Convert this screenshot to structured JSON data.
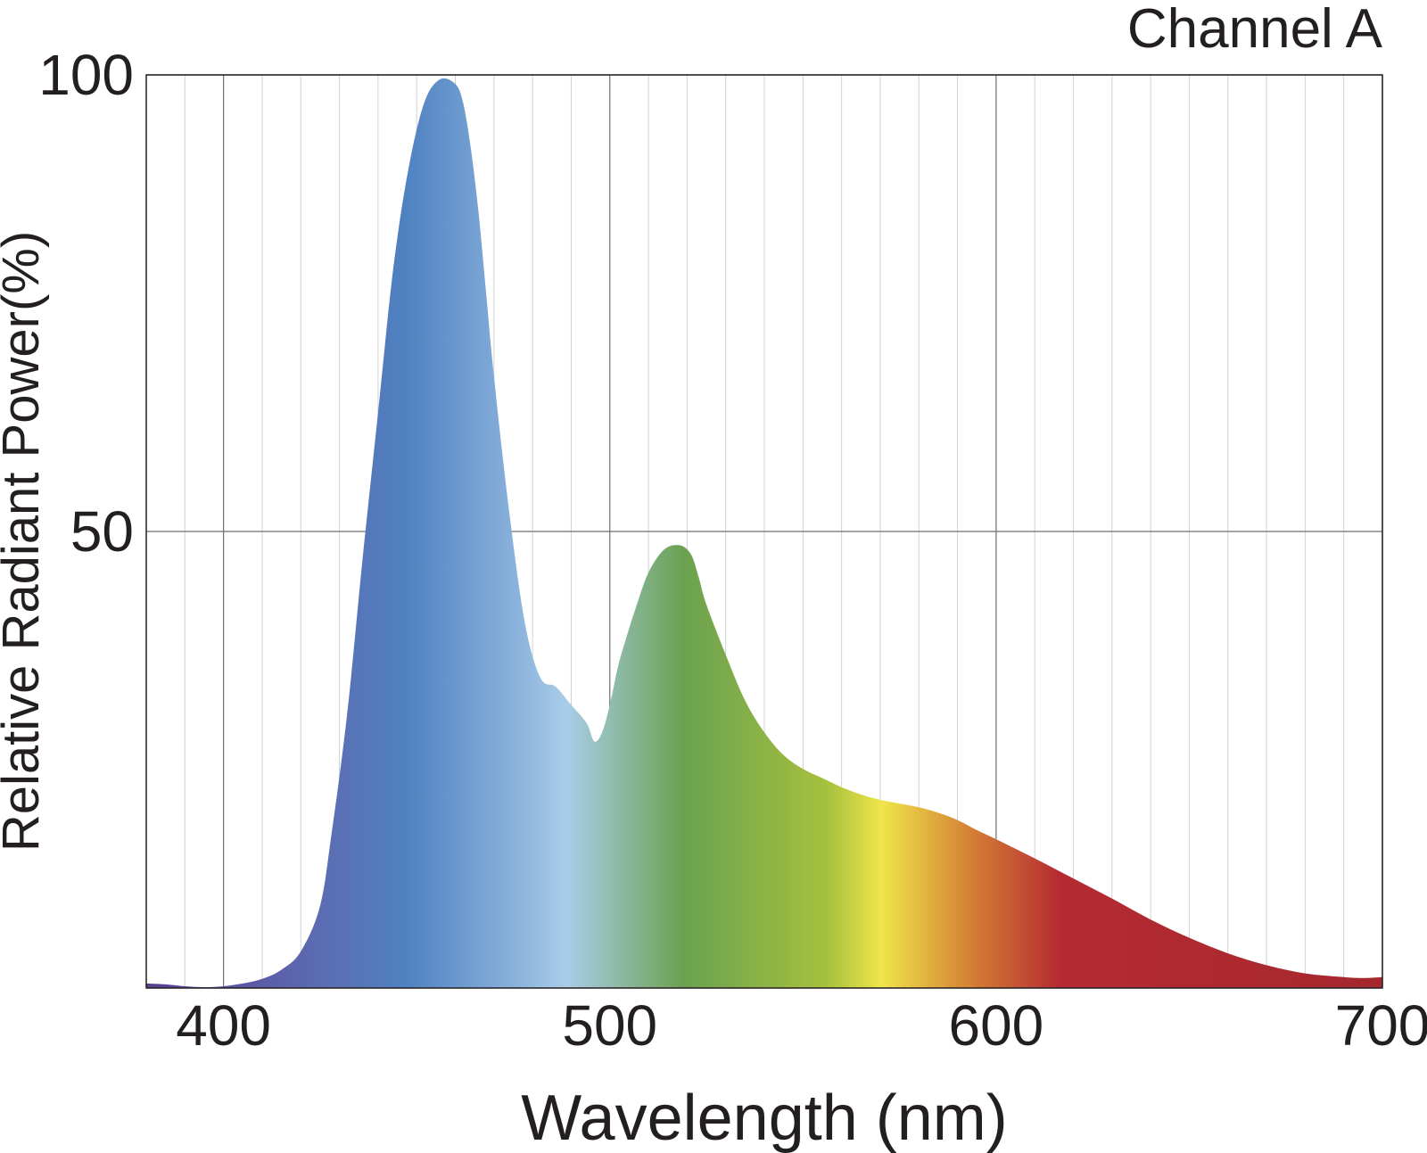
{
  "chart_data": {
    "type": "area",
    "title": "Channel A",
    "xlabel": "Wavelength (nm)",
    "ylabel": "Relative Radiant Power(%)",
    "xlim": [
      380,
      700
    ],
    "ylim": [
      0,
      100
    ],
    "x_ticks": [
      400,
      500,
      600,
      700
    ],
    "y_ticks": [
      50,
      100
    ],
    "x_minor_step": 10,
    "grid": true,
    "fill": "visible spectrum gradient",
    "series": [
      {
        "x": [
          380,
          385,
          390,
          395,
          400,
          405,
          410,
          415,
          420,
          425,
          428,
          432,
          436,
          440,
          444,
          448,
          452,
          456,
          460,
          462,
          464,
          466,
          468,
          470,
          474,
          478,
          482,
          486,
          490,
          494,
          496,
          498,
          500,
          502,
          504,
          507,
          510,
          514,
          518,
          521,
          523,
          525,
          530,
          535,
          540,
          545,
          550,
          555,
          560,
          565,
          570,
          575,
          580,
          585,
          590,
          595,
          600,
          610,
          620,
          630,
          640,
          650,
          660,
          670,
          680,
          690,
          695,
          700
        ],
        "y": [
          0.5,
          0.4,
          0.2,
          0.1,
          0.2,
          0.5,
          1.0,
          2.0,
          4.0,
          9.0,
          17.0,
          30.0,
          47.0,
          63.0,
          79.0,
          90.0,
          97.0,
          99.5,
          99.0,
          97.0,
          92.0,
          85.0,
          76.0,
          67.0,
          52.0,
          40.0,
          34.0,
          33.0,
          31.0,
          29.0,
          27.0,
          28.0,
          31.0,
          35.0,
          38.0,
          42.0,
          45.5,
          48.0,
          48.5,
          47.5,
          45.0,
          42.0,
          36.5,
          31.5,
          28.0,
          25.5,
          24.0,
          23.0,
          22.0,
          21.2,
          20.6,
          20.2,
          19.8,
          19.2,
          18.4,
          17.3,
          16.3,
          14.2,
          12.0,
          9.8,
          7.5,
          5.5,
          3.8,
          2.5,
          1.6,
          1.2,
          1.1,
          1.2
        ]
      }
    ]
  },
  "colors": {
    "axis": "#231f20",
    "major_grid": "#6d6e71",
    "minor_grid": "#d1d3d4",
    "spectrum": [
      "#5a3d8f",
      "#5b6fb5",
      "#4e82c1",
      "#8bb2dc",
      "#a9cde8",
      "#6aa150",
      "#a6c03d",
      "#efe54a",
      "#d37c34",
      "#b52a32",
      "#a5282f"
    ]
  }
}
